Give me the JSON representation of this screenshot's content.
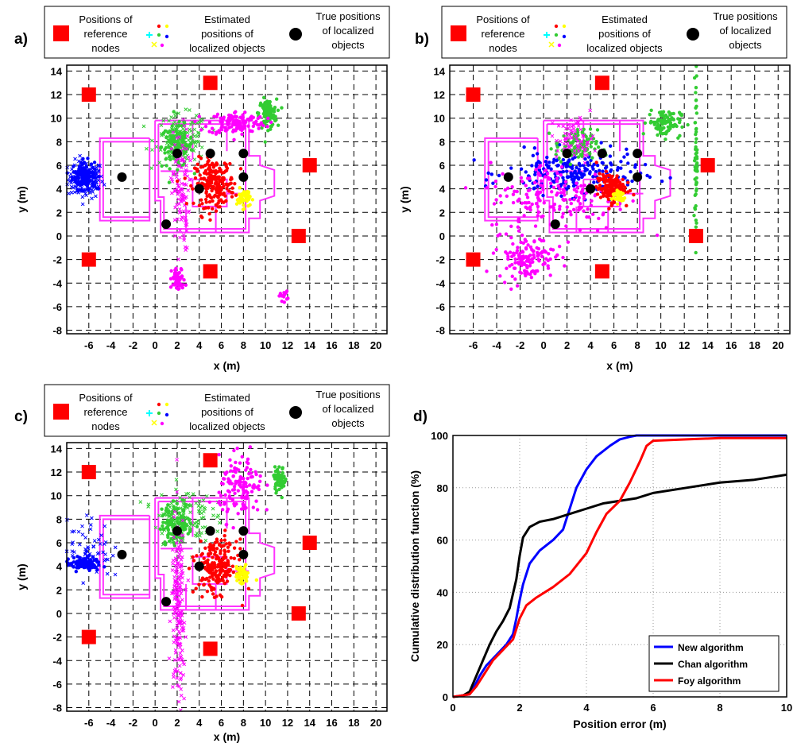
{
  "panel_labels": [
    "a)",
    "b)",
    "c)",
    "d)"
  ],
  "legend": {
    "reference": [
      "Positions of",
      "reference",
      "nodes"
    ],
    "estimated": [
      "Estimated",
      "positions of",
      "localized objects"
    ],
    "true_pos": [
      "True positions",
      "of localized",
      "objects"
    ]
  },
  "colors": {
    "reference": "#ff0000",
    "true_pos": "#000000",
    "floorplan": "#ff33ff",
    "obj1": "#0000ff",
    "obj2": "#33cc33",
    "obj3": "#ff00ff",
    "obj4": "#ff0000",
    "obj5": "#ffff00",
    "obj6": "#00ffff"
  },
  "chart_data": [
    {
      "type": "scatter",
      "panel": "a)",
      "xlabel": "x (m)",
      "ylabel": "y (m)",
      "xlim": [
        -8,
        21
      ],
      "ylim": [
        -8.3,
        14.5
      ],
      "xticks": [
        -6,
        -4,
        -2,
        0,
        2,
        4,
        6,
        8,
        10,
        12,
        14,
        16,
        18,
        20
      ],
      "yticks": [
        -8,
        -6,
        -4,
        -2,
        0,
        2,
        4,
        6,
        8,
        10,
        12,
        14
      ],
      "grid": true,
      "reference_nodes": [
        [
          -6,
          12
        ],
        [
          5,
          13
        ],
        [
          14,
          6
        ],
        [
          13,
          0
        ],
        [
          -6,
          -2
        ],
        [
          5,
          -3
        ]
      ],
      "true_positions": [
        [
          -3,
          5
        ],
        [
          2,
          7
        ],
        [
          5,
          7
        ],
        [
          8,
          7
        ],
        [
          8,
          5
        ],
        [
          4,
          4
        ],
        [
          1,
          1
        ]
      ],
      "clusters": [
        {
          "color": "#0000ff",
          "marker": "x",
          "center": [
            -6.3,
            4.8
          ],
          "spread": [
            0.8,
            0.8
          ],
          "n": 160
        },
        {
          "color": "#0000ff",
          "marker": "dot",
          "center": [
            -6.5,
            5.2
          ],
          "spread": [
            0.5,
            0.6
          ],
          "n": 100
        },
        {
          "color": "#33cc33",
          "marker": "dot",
          "center": [
            2,
            7.6
          ],
          "spread": [
            0.7,
            0.9
          ],
          "n": 120
        },
        {
          "color": "#33cc33",
          "marker": "x",
          "center": [
            2.4,
            8.3
          ],
          "spread": [
            1.2,
            1.0
          ],
          "n": 120
        },
        {
          "color": "#33cc33",
          "marker": "dot",
          "center": [
            10.2,
            10.4
          ],
          "spread": [
            0.4,
            0.6
          ],
          "n": 120
        },
        {
          "color": "#ff00ff",
          "marker": "dot",
          "center": [
            7.4,
            9.6
          ],
          "spread": [
            1.3,
            0.5
          ],
          "n": 130
        },
        {
          "color": "#ff00ff",
          "marker": "x",
          "center": [
            2.3,
            3.8
          ],
          "spread": [
            0.4,
            2.6
          ],
          "n": 110
        },
        {
          "color": "#ff00ff",
          "marker": "dot",
          "center": [
            2.1,
            -3.7
          ],
          "spread": [
            0.3,
            0.5
          ],
          "n": 60
        },
        {
          "color": "#ff00ff",
          "marker": "dot",
          "center": [
            11.6,
            -5.1
          ],
          "spread": [
            0.2,
            0.2
          ],
          "n": 15
        },
        {
          "color": "#ff0000",
          "marker": "dot",
          "center": [
            5.4,
            4.5
          ],
          "spread": [
            0.9,
            1.0
          ],
          "n": 220
        },
        {
          "color": "#ffff00",
          "marker": "dot",
          "center": [
            8,
            3.2
          ],
          "spread": [
            0.3,
            0.4
          ],
          "n": 50
        }
      ]
    },
    {
      "type": "scatter",
      "panel": "b)",
      "xlabel": "x (m)",
      "ylabel": "y (m)",
      "xlim": [
        -8,
        21
      ],
      "ylim": [
        -8.3,
        14.5
      ],
      "xticks": [
        -6,
        -4,
        -2,
        0,
        2,
        4,
        6,
        8,
        10,
        12,
        14,
        16,
        18,
        20
      ],
      "yticks": [
        -8,
        -6,
        -4,
        -2,
        0,
        2,
        4,
        6,
        8,
        10,
        12,
        14
      ],
      "grid": true,
      "reference_nodes": [
        [
          -6,
          12
        ],
        [
          5,
          13
        ],
        [
          14,
          6
        ],
        [
          13,
          0
        ],
        [
          -6,
          -2
        ],
        [
          5,
          -3
        ]
      ],
      "true_positions": [
        [
          -3,
          5
        ],
        [
          2,
          7
        ],
        [
          5,
          7
        ],
        [
          8,
          7
        ],
        [
          8,
          5
        ],
        [
          4,
          4
        ],
        [
          1,
          1
        ]
      ],
      "clusters": [
        {
          "color": "#0000ff",
          "marker": "dot",
          "center": [
            2.5,
            5.3
          ],
          "spread": [
            2.8,
            0.9
          ],
          "n": 220
        },
        {
          "color": "#33cc33",
          "marker": "dot",
          "center": [
            10.3,
            9.6
          ],
          "spread": [
            0.7,
            0.6
          ],
          "n": 90
        },
        {
          "color": "#33cc33",
          "marker": "dot",
          "center": [
            2.8,
            7.6
          ],
          "spread": [
            0.9,
            0.7
          ],
          "n": 100
        },
        {
          "color": "#33cc33",
          "marker": "dot",
          "center": [
            13,
            7
          ],
          "spread": [
            0.05,
            3.5
          ],
          "n": 60
        },
        {
          "color": "#ff00ff",
          "marker": "dot",
          "center": [
            1.2,
            3.3
          ],
          "spread": [
            3,
            1.5
          ],
          "n": 180
        },
        {
          "color": "#ff00ff",
          "marker": "dot",
          "center": [
            -1.5,
            -1.8
          ],
          "spread": [
            1.2,
            0.9
          ],
          "n": 130
        },
        {
          "color": "#ff00ff",
          "marker": "x",
          "center": [
            2.7,
            8.2
          ],
          "spread": [
            0.8,
            0.9
          ],
          "n": 70
        },
        {
          "color": "#ff0000",
          "marker": "dot",
          "center": [
            5.7,
            4.1
          ],
          "spread": [
            0.6,
            0.6
          ],
          "n": 150
        },
        {
          "color": "#ffff00",
          "marker": "dot",
          "center": [
            6.4,
            3.4
          ],
          "spread": [
            0.3,
            0.3
          ],
          "n": 40
        }
      ]
    },
    {
      "type": "scatter",
      "panel": "c)",
      "xlabel": "x (m)",
      "ylabel": "y (m)",
      "xlim": [
        -8,
        21
      ],
      "ylim": [
        -8.3,
        14.5
      ],
      "xticks": [
        -6,
        -4,
        -2,
        0,
        2,
        4,
        6,
        8,
        10,
        12,
        14,
        16,
        18,
        20
      ],
      "yticks": [
        -8,
        -6,
        -4,
        -2,
        0,
        2,
        4,
        6,
        8,
        10,
        12,
        14
      ],
      "grid": true,
      "reference_nodes": [
        [
          -6,
          12
        ],
        [
          5,
          13
        ],
        [
          14,
          6
        ],
        [
          13,
          0
        ],
        [
          -6,
          -2
        ],
        [
          5,
          -3
        ]
      ],
      "true_positions": [
        [
          -3,
          5
        ],
        [
          2,
          7
        ],
        [
          5,
          7
        ],
        [
          8,
          7
        ],
        [
          8,
          5
        ],
        [
          4,
          4
        ],
        [
          1,
          1
        ]
      ],
      "clusters": [
        {
          "color": "#0000ff",
          "marker": "dot",
          "center": [
            -6.5,
            4.2
          ],
          "spread": [
            0.8,
            0.3
          ],
          "n": 100
        },
        {
          "color": "#0000ff",
          "marker": "x",
          "center": [
            -6,
            5.5
          ],
          "spread": [
            1,
            1.3
          ],
          "n": 60
        },
        {
          "color": "#33cc33",
          "marker": "dot",
          "center": [
            2,
            7.6
          ],
          "spread": [
            0.7,
            0.9
          ],
          "n": 130
        },
        {
          "color": "#33cc33",
          "marker": "x",
          "center": [
            2.5,
            8.4
          ],
          "spread": [
            1.3,
            1.2
          ],
          "n": 110
        },
        {
          "color": "#33cc33",
          "marker": "dot",
          "center": [
            11.3,
            11.4
          ],
          "spread": [
            0.3,
            0.5
          ],
          "n": 60
        },
        {
          "color": "#ff00ff",
          "marker": "dot",
          "center": [
            7.8,
            10.6
          ],
          "spread": [
            1,
            1.3
          ],
          "n": 130
        },
        {
          "color": "#ff00ff",
          "marker": "x",
          "center": [
            2.1,
            0.5
          ],
          "spread": [
            0.3,
            3.8
          ],
          "n": 190
        },
        {
          "color": "#ff0000",
          "marker": "dot",
          "center": [
            5.6,
            4
          ],
          "spread": [
            0.9,
            1.1
          ],
          "n": 220
        },
        {
          "color": "#ffff00",
          "marker": "dot",
          "center": [
            7.9,
            3.2
          ],
          "spread": [
            0.3,
            0.4
          ],
          "n": 50
        }
      ]
    },
    {
      "type": "line",
      "panel": "d)",
      "xlabel": "Position error (m)",
      "ylabel": "Cumulative distribution function (%)",
      "xlim": [
        0,
        10
      ],
      "ylim": [
        0,
        100
      ],
      "xticks": [
        0,
        2,
        4,
        6,
        8,
        10
      ],
      "yticks": [
        0,
        20,
        40,
        60,
        80,
        100
      ],
      "grid": true,
      "legend_position": "bottom-right",
      "series": [
        {
          "name": "New algorithm",
          "color": "#0000ff",
          "x": [
            0,
            0.5,
            0.6,
            0.8,
            1.0,
            1.3,
            1.6,
            1.8,
            1.9,
            2.0,
            2.1,
            2.3,
            2.6,
            3.0,
            3.3,
            3.5,
            3.7,
            4.0,
            4.3,
            4.7,
            5.0,
            5.3,
            5.5,
            6.0,
            7.0,
            10.0
          ],
          "values": [
            0,
            1,
            3,
            8,
            12,
            16,
            20,
            24,
            30,
            37,
            43,
            51,
            56,
            60,
            64,
            72,
            80,
            87,
            92,
            96,
            98.5,
            99.5,
            100,
            100,
            100,
            100
          ]
        },
        {
          "name": "Chan algorithm",
          "color": "#000000",
          "x": [
            0,
            0.3,
            0.5,
            0.7,
            0.9,
            1.1,
            1.3,
            1.5,
            1.7,
            1.9,
            2.0,
            2.1,
            2.3,
            2.6,
            3.0,
            3.5,
            4.0,
            4.5,
            5.0,
            5.5,
            6.0,
            7.0,
            8.0,
            9.0,
            10.0
          ],
          "values": [
            0,
            0.5,
            2,
            8,
            14,
            20,
            25,
            29,
            34,
            45,
            54,
            61,
            65,
            67,
            68,
            70,
            72,
            74,
            75,
            76,
            78,
            80,
            82,
            83,
            85
          ]
        },
        {
          "name": "Foy algorithm",
          "color": "#ff0000",
          "x": [
            0,
            0.5,
            0.7,
            0.9,
            1.2,
            1.5,
            1.8,
            2.0,
            2.2,
            2.5,
            3.0,
            3.5,
            4.0,
            4.3,
            4.6,
            5.0,
            5.3,
            5.6,
            5.8,
            6.0,
            7.0,
            8.0,
            10.0
          ],
          "values": [
            0,
            1,
            4,
            8,
            14,
            18,
            22,
            30,
            35,
            38,
            42,
            47,
            55,
            63,
            70,
            75,
            82,
            90,
            96,
            98,
            98.5,
            99,
            99
          ]
        }
      ]
    }
  ]
}
